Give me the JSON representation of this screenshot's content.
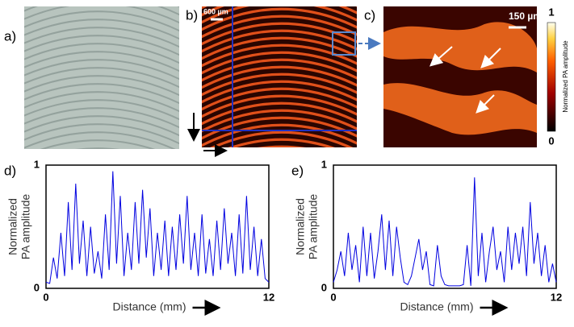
{
  "images": {
    "a": {
      "label": "a)"
    },
    "b": {
      "label": "b)",
      "scale_bar": "600 µm"
    },
    "c": {
      "label": "c)",
      "scale_bar": "150 µm"
    },
    "colorbar": {
      "label": "Normalized PA amplitude",
      "ticks": [
        0,
        1
      ]
    }
  },
  "chart_data": [
    {
      "type": "line",
      "panel_label": "d)",
      "ylabel": [
        "Normalized",
        "PA amplitude"
      ],
      "xlabel": "Distance (mm)",
      "color": "#0000e0",
      "xlim": [
        0,
        12
      ],
      "ylim": [
        0,
        1
      ],
      "xticks": [
        0,
        12
      ],
      "yticks": [
        0,
        1
      ],
      "x": [
        0,
        0.2,
        0.4,
        0.6,
        0.8,
        1.0,
        1.2,
        1.4,
        1.6,
        1.8,
        2.0,
        2.2,
        2.4,
        2.6,
        2.8,
        3.0,
        3.2,
        3.4,
        3.6,
        3.8,
        4.0,
        4.2,
        4.4,
        4.6,
        4.8,
        5.0,
        5.2,
        5.4,
        5.6,
        5.8,
        6.0,
        6.2,
        6.4,
        6.6,
        6.8,
        7.0,
        7.2,
        7.4,
        7.6,
        7.8,
        8.0,
        8.2,
        8.4,
        8.6,
        8.8,
        9.0,
        9.2,
        9.4,
        9.6,
        9.8,
        10.0,
        10.2,
        10.4,
        10.6,
        10.8,
        11.0,
        11.2,
        11.4,
        11.6,
        11.8,
        12
      ],
      "values": [
        0.05,
        0.04,
        0.25,
        0.08,
        0.45,
        0.1,
        0.7,
        0.15,
        0.85,
        0.2,
        0.55,
        0.1,
        0.5,
        0.12,
        0.3,
        0.08,
        0.6,
        0.15,
        0.95,
        0.2,
        0.75,
        0.1,
        0.45,
        0.15,
        0.7,
        0.2,
        0.8,
        0.25,
        0.65,
        0.1,
        0.45,
        0.15,
        0.55,
        0.1,
        0.5,
        0.15,
        0.6,
        0.2,
        0.75,
        0.15,
        0.45,
        0.1,
        0.6,
        0.12,
        0.4,
        0.1,
        0.55,
        0.15,
        0.65,
        0.2,
        0.45,
        0.1,
        0.6,
        0.12,
        0.75,
        0.15,
        0.5,
        0.1,
        0.4,
        0.08,
        0.05
      ]
    },
    {
      "type": "line",
      "panel_label": "e)",
      "ylabel": [
        "Normalized",
        "PA amplitude"
      ],
      "xlabel": "Distance (mm)",
      "color": "#0000e0",
      "xlim": [
        0,
        12
      ],
      "ylim": [
        0,
        1
      ],
      "xticks": [
        0,
        12
      ],
      "yticks": [
        0,
        1
      ],
      "x": [
        0,
        0.2,
        0.4,
        0.6,
        0.8,
        1.0,
        1.2,
        1.4,
        1.6,
        1.8,
        2.0,
        2.2,
        2.4,
        2.6,
        2.8,
        3.0,
        3.2,
        3.4,
        3.6,
        3.8,
        4.0,
        4.2,
        4.4,
        4.6,
        4.8,
        5.0,
        5.2,
        5.4,
        5.6,
        5.8,
        6.0,
        6.2,
        6.4,
        6.6,
        6.8,
        7.0,
        7.2,
        7.4,
        7.6,
        7.8,
        8.0,
        8.2,
        8.4,
        8.6,
        8.8,
        9.0,
        9.2,
        9.4,
        9.6,
        9.8,
        10.0,
        10.2,
        10.4,
        10.6,
        10.8,
        11.0,
        11.2,
        11.4,
        11.6,
        11.8,
        12
      ],
      "values": [
        0.05,
        0.15,
        0.3,
        0.1,
        0.45,
        0.15,
        0.35,
        0.05,
        0.5,
        0.1,
        0.45,
        0.08,
        0.3,
        0.6,
        0.15,
        0.55,
        0.1,
        0.5,
        0.25,
        0.05,
        0.03,
        0.1,
        0.25,
        0.4,
        0.15,
        0.3,
        0.03,
        0.02,
        0.35,
        0.1,
        0.03,
        0.02,
        0.02,
        0.02,
        0.02,
        0.03,
        0.35,
        0.02,
        0.9,
        0.1,
        0.45,
        0.05,
        0.3,
        0.5,
        0.15,
        0.3,
        0.05,
        0.5,
        0.15,
        0.45,
        0.2,
        0.5,
        0.1,
        0.7,
        0.2,
        0.45,
        0.1,
        0.35,
        0.05,
        0.2,
        0.05
      ]
    }
  ]
}
